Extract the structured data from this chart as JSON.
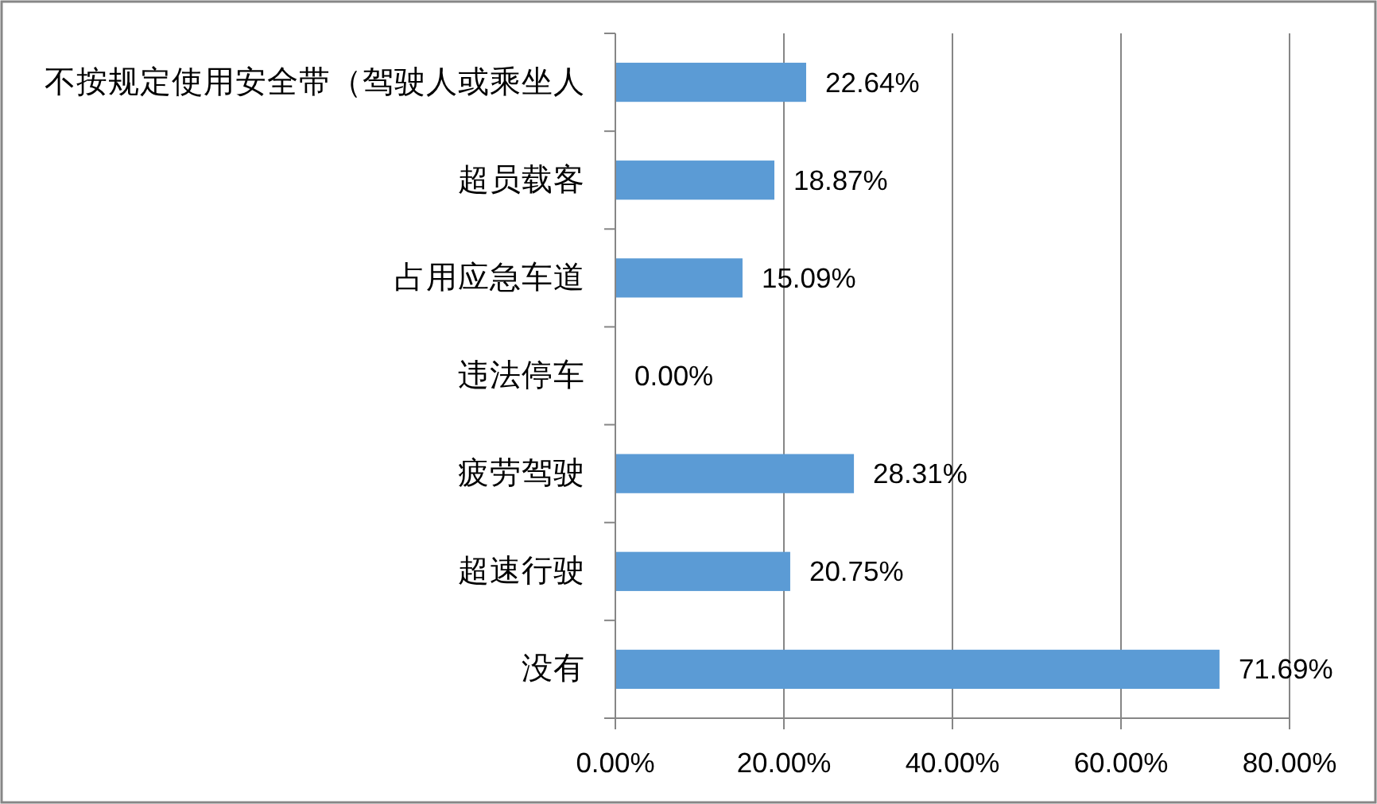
{
  "chart_data": {
    "type": "bar",
    "orientation": "horizontal",
    "categories": [
      "不按规定使用安全带（驾驶人或乘坐人",
      "超员载客",
      "占用应急车道",
      "违法停车",
      "疲劳驾驶",
      "超速行驶",
      "没有"
    ],
    "values": [
      22.64,
      18.87,
      15.09,
      0.0,
      28.31,
      20.75,
      71.69
    ],
    "value_labels": [
      "22.64%",
      "18.87%",
      "15.09%",
      "0.00%",
      "28.31%",
      "20.75%",
      "71.69%"
    ],
    "color": "#5b9bd5",
    "xlim": [
      0,
      80
    ],
    "xticks": [
      {
        "value": 0,
        "label": "0.00%"
      },
      {
        "value": 20,
        "label": "20.00%"
      },
      {
        "value": 40,
        "label": "40.00%"
      },
      {
        "value": 60,
        "label": "60.00%"
      },
      {
        "value": 80,
        "label": "80.00%"
      }
    ],
    "grid": "x"
  }
}
